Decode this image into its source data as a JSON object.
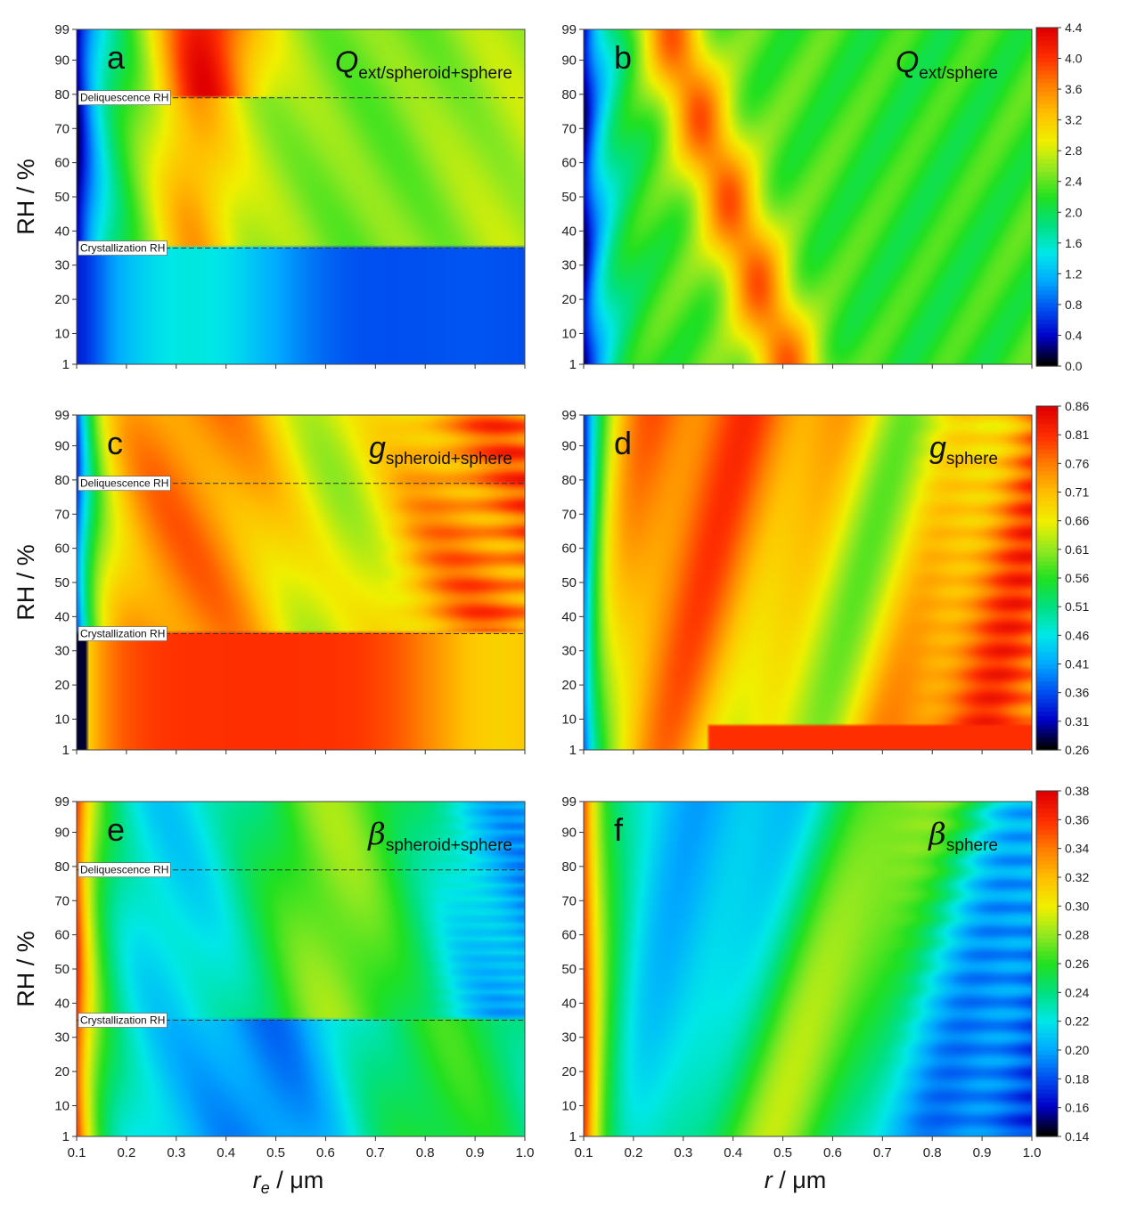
{
  "figure": {
    "colormap": [
      "#000000",
      "#0000c8",
      "#0050f0",
      "#00aaff",
      "#00e8e8",
      "#00e080",
      "#20e020",
      "#90e820",
      "#f0f000",
      "#ffc000",
      "#ff8000",
      "#ff3000",
      "#e00000"
    ]
  },
  "chart_data": [
    {
      "id": "a",
      "type": "heatmap",
      "letter": "a",
      "title_main": "Q",
      "title_sub": "ext/spheroid+sphere",
      "title_italic": true,
      "title_symbol": false,
      "quantity": "Qext",
      "xlim": [
        0.1,
        1.0
      ],
      "ylim": [
        1,
        99
      ],
      "x_ticks": [
        "0.1",
        "0.2",
        "0.3",
        "0.4",
        "0.5",
        "0.6",
        "0.7",
        "0.8",
        "0.9",
        "1.0"
      ],
      "y_ticks": [
        "1",
        "10",
        "20",
        "30",
        "40",
        "50",
        "60",
        "70",
        "80",
        "90",
        "99"
      ],
      "ylabel": "RH / %",
      "annotations": [
        {
          "text": "Deliquescence RH",
          "rh": 79
        },
        {
          "text": "Crystallization RH",
          "rh": 35
        }
      ],
      "colorbar": null
    },
    {
      "id": "b",
      "type": "heatmap",
      "letter": "b",
      "title_main": "Q",
      "title_sub": "ext/sphere",
      "title_italic": true,
      "title_symbol": false,
      "quantity": "Qext",
      "xlim": [
        0.1,
        1.0
      ],
      "ylim": [
        1,
        99
      ],
      "x_ticks": [
        "0.1",
        "0.2",
        "0.3",
        "0.4",
        "0.5",
        "0.6",
        "0.7",
        "0.8",
        "0.9",
        "1.0"
      ],
      "y_ticks": [
        "1",
        "10",
        "20",
        "30",
        "40",
        "50",
        "60",
        "70",
        "80",
        "90",
        "99"
      ],
      "annotations": [],
      "colorbar": {
        "ticks": [
          "0.0",
          "0.4",
          "0.8",
          "1.2",
          "1.6",
          "2.0",
          "2.4",
          "2.8",
          "3.2",
          "3.6",
          "4.0",
          "4.4"
        ],
        "range": [
          0.0,
          4.4
        ]
      }
    },
    {
      "id": "c",
      "type": "heatmap",
      "letter": "c",
      "title_main": "g",
      "title_sub": "spheroid+sphere",
      "title_italic": true,
      "title_symbol": false,
      "quantity": "g",
      "xlim": [
        0.1,
        1.0
      ],
      "ylim": [
        1,
        99
      ],
      "x_ticks": [
        "0.1",
        "0.2",
        "0.3",
        "0.4",
        "0.5",
        "0.6",
        "0.7",
        "0.8",
        "0.9",
        "1.0"
      ],
      "y_ticks": [
        "1",
        "10",
        "20",
        "30",
        "40",
        "50",
        "60",
        "70",
        "80",
        "90",
        "99"
      ],
      "ylabel": "RH / %",
      "annotations": [
        {
          "text": "Deliquescence RH",
          "rh": 79
        },
        {
          "text": "Crystallization RH",
          "rh": 35
        }
      ],
      "colorbar": null
    },
    {
      "id": "d",
      "type": "heatmap",
      "letter": "d",
      "title_main": "g",
      "title_sub": "sphere",
      "title_italic": true,
      "title_symbol": false,
      "quantity": "g",
      "xlim": [
        0.1,
        1.0
      ],
      "ylim": [
        1,
        99
      ],
      "x_ticks": [
        "0.1",
        "0.2",
        "0.3",
        "0.4",
        "0.5",
        "0.6",
        "0.7",
        "0.8",
        "0.9",
        "1.0"
      ],
      "y_ticks": [
        "1",
        "10",
        "20",
        "30",
        "40",
        "50",
        "60",
        "70",
        "80",
        "90",
        "99"
      ],
      "annotations": [],
      "colorbar": {
        "ticks": [
          "0.26",
          "0.31",
          "0.36",
          "0.41",
          "0.46",
          "0.51",
          "0.56",
          "0.61",
          "0.66",
          "0.71",
          "0.76",
          "0.81",
          "0.86"
        ],
        "range": [
          0.26,
          0.86
        ]
      }
    },
    {
      "id": "e",
      "type": "heatmap",
      "letter": "e",
      "title_main": "β",
      "title_sub": "spheroid+sphere",
      "title_italic": true,
      "title_symbol": true,
      "quantity": "beta",
      "xlim": [
        0.1,
        1.0
      ],
      "ylim": [
        1,
        99
      ],
      "x_ticks": [
        "0.1",
        "0.2",
        "0.3",
        "0.4",
        "0.5",
        "0.6",
        "0.7",
        "0.8",
        "0.9",
        "1.0"
      ],
      "y_ticks": [
        "1",
        "10",
        "20",
        "30",
        "40",
        "50",
        "60",
        "70",
        "80",
        "90",
        "99"
      ],
      "ylabel": "RH / %",
      "xlabel_main": "r",
      "xlabel_sub": "e",
      "xlabel_unit": " / μm",
      "annotations": [
        {
          "text": "Deliquescence RH",
          "rh": 79
        },
        {
          "text": "Crystallization RH",
          "rh": 35
        }
      ],
      "colorbar": null
    },
    {
      "id": "f",
      "type": "heatmap",
      "letter": "f",
      "title_main": "β",
      "title_sub": "sphere",
      "title_italic": true,
      "title_symbol": true,
      "quantity": "beta",
      "xlim": [
        0.1,
        1.0
      ],
      "ylim": [
        1,
        99
      ],
      "x_ticks": [
        "0.1",
        "0.2",
        "0.3",
        "0.4",
        "0.5",
        "0.6",
        "0.7",
        "0.8",
        "0.9",
        "1.0"
      ],
      "y_ticks": [
        "1",
        "10",
        "20",
        "30",
        "40",
        "50",
        "60",
        "70",
        "80",
        "90",
        "99"
      ],
      "xlabel_main": "r",
      "xlabel_sub": "",
      "xlabel_unit": " / μm",
      "annotations": [],
      "colorbar": {
        "ticks": [
          "0.14",
          "0.16",
          "0.18",
          "0.20",
          "0.22",
          "0.24",
          "0.26",
          "0.28",
          "0.30",
          "0.32",
          "0.34",
          "0.36",
          "0.38"
        ],
        "range": [
          0.14,
          0.38
        ]
      }
    }
  ]
}
